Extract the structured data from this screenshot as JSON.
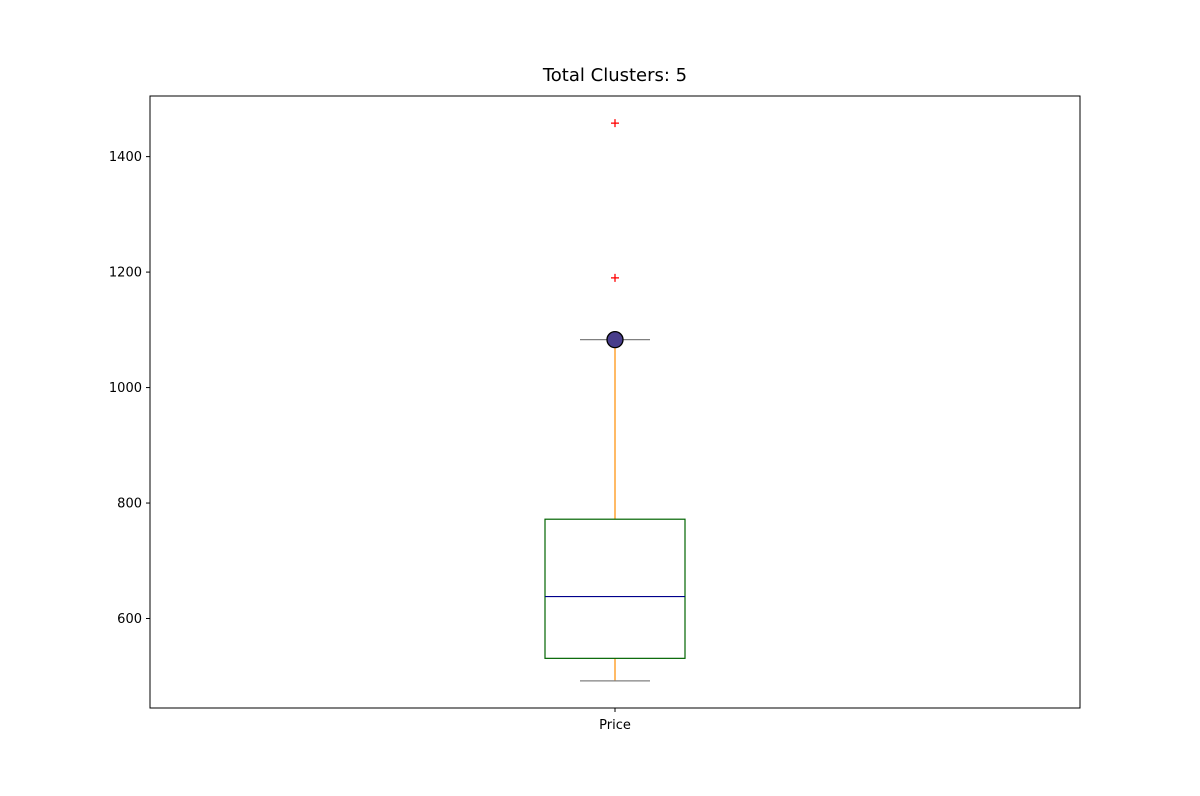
{
  "chart_data": {
    "type": "box",
    "title": "Total Clusters: 5",
    "xlabel": "",
    "ylabel": "",
    "categories": [
      "Price"
    ],
    "yticks": [
      600,
      800,
      1000,
      1200,
      1400
    ],
    "ylim": [
      445,
      1505
    ],
    "box": {
      "whisker_low": 492,
      "q1": 531,
      "median": 638,
      "q3": 772,
      "whisker_high": 1083,
      "mean": 1083,
      "outliers": [
        1190,
        1458
      ]
    },
    "grid": false,
    "colors": {
      "box_edge": "#006400",
      "median_line": "#00008b",
      "whisker": "#ff8c00",
      "cap": "#808080",
      "outlier": "#ff0000",
      "mean_marker_fill": "#483d8b",
      "mean_marker_edge": "#000000"
    }
  }
}
